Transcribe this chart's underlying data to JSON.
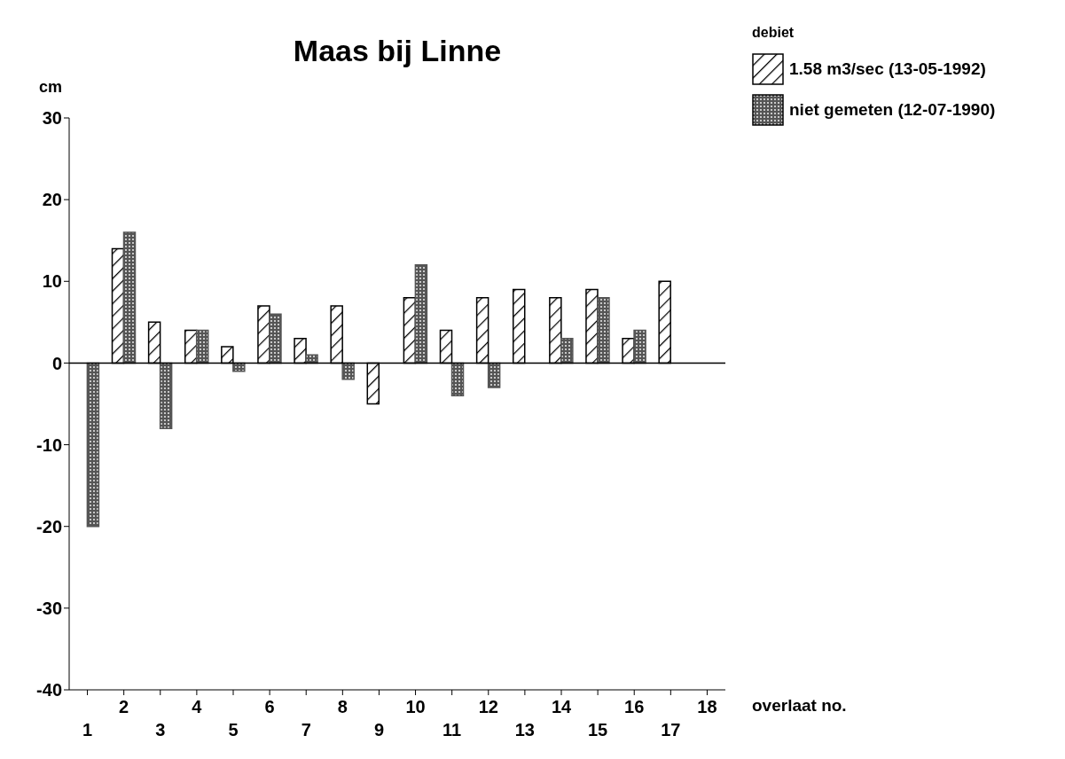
{
  "chart_data": {
    "type": "bar",
    "title": "Maas bij Linne",
    "ylabel": "cm",
    "xlabel": "overlaat no.",
    "legend_title": "debiet",
    "categories": [
      "1",
      "2",
      "3",
      "4",
      "5",
      "6",
      "7",
      "8",
      "9",
      "10",
      "11",
      "12",
      "13",
      "14",
      "15",
      "16",
      "17",
      "18"
    ],
    "series": [
      {
        "name": "1.58 m3/sec (13-05-1992)",
        "color": "#000000",
        "values": [
          null,
          14,
          5,
          4,
          2,
          7,
          3,
          7,
          -5,
          8,
          4,
          8,
          9,
          8,
          9,
          3,
          10,
          null
        ]
      },
      {
        "name": "niet gemeten (12-07-1990)",
        "color": "#555555",
        "values": [
          -20,
          16,
          -8,
          4,
          -1,
          6,
          1,
          -2,
          null,
          12,
          -4,
          -3,
          null,
          3,
          8,
          4,
          null,
          null
        ]
      }
    ],
    "ylim": [
      -40,
      30
    ],
    "yticks": [
      -40,
      -30,
      -20,
      -10,
      0,
      10,
      20,
      30
    ],
    "ref_lines": [
      {
        "axis": "y",
        "value": 0
      }
    ],
    "legend": "top right"
  }
}
